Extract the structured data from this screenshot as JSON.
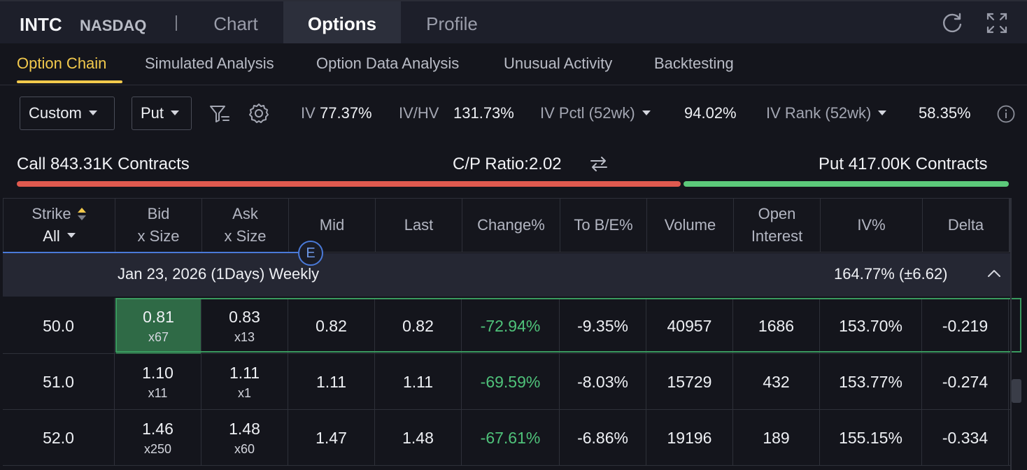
{
  "header": {
    "ticker": "INTC",
    "exchange": "NASDAQ",
    "tabs": [
      "Chart",
      "Options",
      "Profile"
    ],
    "active_tab": "Options"
  },
  "subtabs": {
    "items": [
      "Option Chain",
      "Simulated Analysis",
      "Option Data Analysis",
      "Unusual Activity",
      "Backtesting"
    ],
    "active": "Option Chain"
  },
  "filters": {
    "range": "Custom",
    "type": "Put"
  },
  "stats": {
    "iv_label": "IV",
    "iv_value": "77.37%",
    "ivhv_label": "IV/HV",
    "ivhv_value": "131.73%",
    "ivpctl_label": "IV Pctl (52wk)",
    "ivpctl_value": "94.02%",
    "ivrank_label": "IV Rank (52wk)",
    "ivrank_value": "58.35%"
  },
  "ratio": {
    "call": "Call 843.31K Contracts",
    "cp": "C/P Ratio:2.02",
    "put": "Put 417.00K Contracts",
    "call_fraction": 0.669
  },
  "table": {
    "headers": {
      "strike": "Strike",
      "strike_filter": "All",
      "bid": [
        "Bid",
        "x Size"
      ],
      "ask": [
        "Ask",
        "x Size"
      ],
      "mid": "Mid",
      "last": "Last",
      "change": "Change%",
      "tobe": "To B/E%",
      "volume": "Volume",
      "oi": [
        "Open",
        "Interest"
      ],
      "iv": "IV%",
      "delta": "Delta"
    },
    "expiry_badge": "E",
    "expiry": {
      "date": "Jan 23, 2026 (1Days) Weekly",
      "iv": "164.77%  (±6.62)"
    },
    "rows": [
      {
        "strike": "50.0",
        "bid": "0.81",
        "bid_size": "x67",
        "ask": "0.83",
        "ask_size": "x13",
        "mid": "0.82",
        "last": "0.82",
        "change": "-72.94%",
        "tobe": "-9.35%",
        "volume": "40957",
        "oi": "1686",
        "iv": "153.70%",
        "delta": "-0.219"
      },
      {
        "strike": "51.0",
        "bid": "1.10",
        "bid_size": "x11",
        "ask": "1.11",
        "ask_size": "x1",
        "mid": "1.11",
        "last": "1.11",
        "change": "-69.59%",
        "tobe": "-8.03%",
        "volume": "15729",
        "oi": "432",
        "iv": "153.77%",
        "delta": "-0.274"
      },
      {
        "strike": "52.0",
        "bid": "1.46",
        "bid_size": "x250",
        "ask": "1.48",
        "ask_size": "x60",
        "mid": "1.47",
        "last": "1.48",
        "change": "-67.61%",
        "tobe": "-6.86%",
        "volume": "19196",
        "oi": "189",
        "iv": "155.15%",
        "delta": "-0.334"
      }
    ]
  },
  "colors": {
    "accent_yellow": "#f2c94c",
    "call_red": "#e05a4f",
    "put_green": "#5cc97a",
    "change_green": "#4fc27a"
  }
}
